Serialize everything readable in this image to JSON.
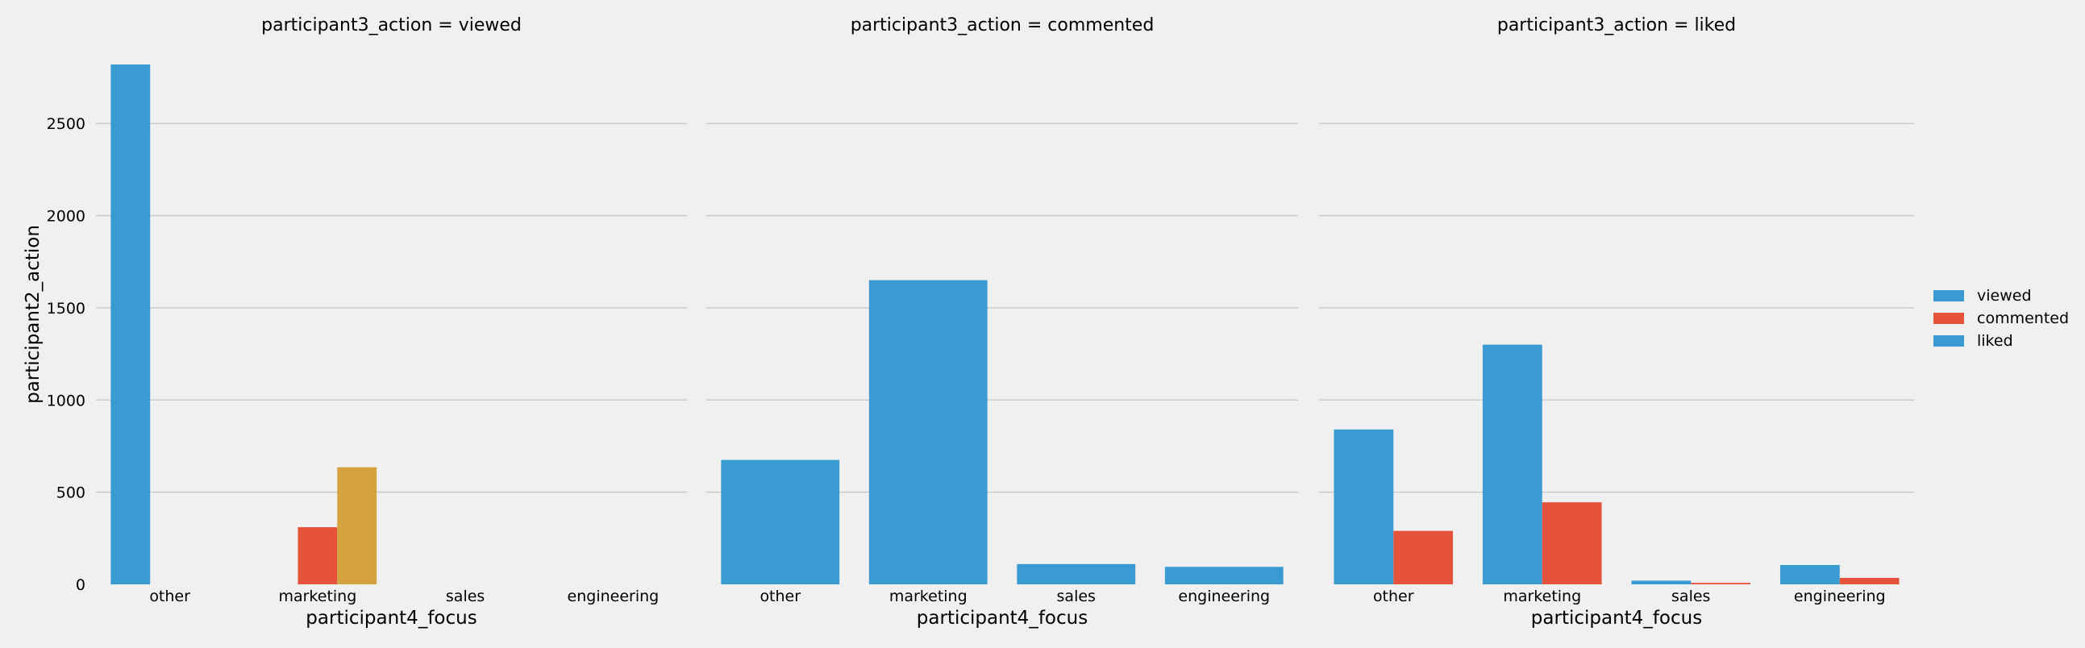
{
  "chart_data": {
    "type": "bar",
    "ylabel": "participant2_action",
    "ylim": [
      0,
      2820
    ],
    "yticks": [
      0,
      500,
      1000,
      1500,
      2000,
      2500
    ],
    "grid": true,
    "legend": {
      "placement": "right",
      "entries": [
        {
          "label": "viewed",
          "color": "#3a9ad2"
        },
        {
          "label": "commented",
          "color": "#e5533b"
        },
        {
          "label": "liked",
          "color": "#3a9ad2"
        }
      ]
    },
    "facets": [
      {
        "title": "participant3_action = viewed",
        "xlabel": "participant4_focus",
        "categories": [
          "other",
          "marketing",
          "sales",
          "engineering"
        ],
        "series": [
          {
            "color": "#3a9ad2",
            "values": [
              2820,
              0,
              0,
              0
            ]
          },
          {
            "color": "#e5533b",
            "values": [
              0,
              310,
              0,
              0
            ]
          },
          {
            "color": "#d4a23f",
            "values": [
              0,
              635,
              0,
              0
            ]
          }
        ]
      },
      {
        "title": "participant3_action = commented",
        "xlabel": "participant4_focus",
        "categories": [
          "other",
          "marketing",
          "sales",
          "engineering"
        ],
        "series": [
          {
            "color": "#3a9ad2",
            "values": [
              675,
              1650,
              110,
              95
            ]
          }
        ]
      },
      {
        "title": "participant3_action = liked",
        "xlabel": "participant4_focus",
        "categories": [
          "other",
          "marketing",
          "sales",
          "engineering"
        ],
        "series": [
          {
            "color": "#3a9ad2",
            "values": [
              840,
              1300,
              20,
              105
            ]
          },
          {
            "color": "#e5533b",
            "values": [
              290,
              445,
              8,
              35
            ]
          }
        ]
      }
    ]
  }
}
